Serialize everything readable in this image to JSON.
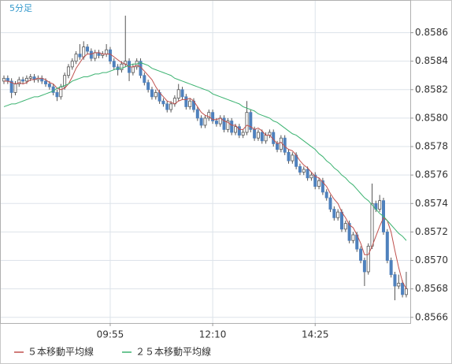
{
  "chart_data": {
    "type": "candlestick",
    "title": "5分足",
    "categories": [
      null,
      null,
      null,
      null,
      null,
      null,
      null,
      null,
      null,
      null,
      null,
      null,
      null,
      null,
      null,
      null,
      null,
      null,
      null,
      null,
      null,
      null,
      null,
      null,
      null,
      null,
      null,
      null,
      "09:55",
      null,
      null,
      null,
      null,
      null,
      null,
      null,
      null,
      null,
      null,
      null,
      null,
      null,
      null,
      null,
      null,
      null,
      null,
      null,
      null,
      null,
      null,
      null,
      null,
      null,
      null,
      "12:10",
      null,
      null,
      null,
      null,
      null,
      null,
      null,
      null,
      null,
      null,
      null,
      null,
      null,
      null,
      null,
      null,
      null,
      null,
      null,
      null,
      null,
      null,
      null,
      null,
      null,
      null,
      "14:25",
      null,
      null,
      null,
      null,
      null,
      null,
      null,
      null,
      null,
      null,
      null,
      null,
      null,
      null,
      null,
      null,
      null,
      null,
      null,
      null,
      null,
      null,
      null,
      null
    ],
    "open": [
      0.85826,
      0.85828,
      0.85826,
      0.85818,
      0.85824,
      0.85827,
      0.85826,
      0.85828,
      0.85829,
      0.85827,
      0.85828,
      0.85826,
      0.85824,
      0.85822,
      0.85818,
      0.85815,
      0.85822,
      0.8583,
      0.85836,
      0.8584,
      0.85845,
      0.85843,
      0.8585,
      0.85847,
      0.85842,
      0.85846,
      0.85844,
      0.85845,
      0.85848,
      0.8584,
      0.85836,
      0.85834,
      0.85838,
      0.8584,
      0.85832,
      0.85836,
      0.8584,
      0.8583,
      0.85825,
      0.8582,
      0.85815,
      0.85818,
      0.85812,
      0.8581,
      0.85806,
      0.8581,
      0.85814,
      0.8582,
      0.85815,
      0.85808,
      0.85812,
      0.85806,
      0.858,
      0.85795,
      0.858,
      0.85804,
      0.85798,
      0.85796,
      0.858,
      0.85792,
      0.85798,
      0.8579,
      0.85794,
      0.85788,
      0.8579,
      0.85804,
      0.85792,
      0.85786,
      0.8579,
      0.85784,
      0.85788,
      0.8579,
      0.85782,
      0.85778,
      0.85786,
      0.85776,
      0.8577,
      0.85774,
      0.85766,
      0.85762,
      0.85764,
      0.85758,
      0.8576,
      0.85752,
      0.85756,
      0.85748,
      0.85744,
      0.85736,
      0.8573,
      0.85734,
      0.85722,
      0.85726,
      0.85714,
      0.85718,
      0.85708,
      0.857,
      0.85692,
      0.8571,
      0.8574,
      0.85736,
      0.85742,
      0.8572,
      0.857,
      0.8569,
      0.85682,
      0.85684,
      0.85676
    ],
    "high": [
      0.8583,
      0.8583,
      0.85828,
      0.85826,
      0.85829,
      0.85829,
      0.8583,
      0.85831,
      0.85831,
      0.8583,
      0.8583,
      0.85828,
      0.85826,
      0.85824,
      0.8582,
      0.85824,
      0.85832,
      0.85838,
      0.85842,
      0.85847,
      0.85852,
      0.85854,
      0.85852,
      0.85849,
      0.85848,
      0.85848,
      0.85847,
      0.85852,
      0.8585,
      0.85842,
      0.85838,
      0.8584,
      0.85872,
      0.85842,
      0.85838,
      0.85842,
      0.85842,
      0.85832,
      0.85827,
      0.85822,
      0.8582,
      0.8582,
      0.85814,
      0.85812,
      0.85812,
      0.85816,
      0.85824,
      0.85822,
      0.85817,
      0.85814,
      0.85814,
      0.85808,
      0.85802,
      0.85802,
      0.85806,
      0.85806,
      0.858,
      0.85802,
      0.85802,
      0.858,
      0.858,
      0.85796,
      0.85796,
      0.85792,
      0.85812,
      0.85806,
      0.85794,
      0.85792,
      0.85792,
      0.8579,
      0.85792,
      0.85792,
      0.85784,
      0.85788,
      0.85788,
      0.85778,
      0.85776,
      0.85776,
      0.85768,
      0.85766,
      0.85766,
      0.85762,
      0.85762,
      0.85758,
      0.85758,
      0.8575,
      0.85746,
      0.85738,
      0.85736,
      0.85736,
      0.85728,
      0.85728,
      0.8572,
      0.8572,
      0.8571,
      0.85702,
      0.85712,
      0.85754,
      0.85742,
      0.85746,
      0.85744,
      0.85722,
      0.85702,
      0.85692,
      0.8569,
      0.85686,
      0.85692
    ],
    "low": [
      0.85824,
      0.85824,
      0.85814,
      0.85816,
      0.85822,
      0.85824,
      0.85824,
      0.85826,
      0.85825,
      0.85825,
      0.85824,
      0.85822,
      0.8582,
      0.85816,
      0.85812,
      0.85813,
      0.8582,
      0.85828,
      0.85834,
      0.85838,
      0.85841,
      0.85841,
      0.85845,
      0.8584,
      0.8584,
      0.85842,
      0.85842,
      0.85843,
      0.85838,
      0.85834,
      0.8583,
      0.85832,
      0.85836,
      0.85826,
      0.8583,
      0.85834,
      0.85828,
      0.85823,
      0.85818,
      0.85813,
      0.85813,
      0.8581,
      0.85808,
      0.85804,
      0.85804,
      0.85808,
      0.85812,
      0.85813,
      0.85806,
      0.85806,
      0.85804,
      0.85798,
      0.85793,
      0.85793,
      0.85798,
      0.85796,
      0.85794,
      0.85794,
      0.8579,
      0.8579,
      0.85788,
      0.85788,
      0.85786,
      0.85786,
      0.85788,
      0.8579,
      0.85784,
      0.85784,
      0.85782,
      0.85782,
      0.85786,
      0.8578,
      0.85776,
      0.85776,
      0.85774,
      0.85768,
      0.85768,
      0.85764,
      0.8576,
      0.8576,
      0.85756,
      0.85756,
      0.8575,
      0.8575,
      0.85746,
      0.85742,
      0.85734,
      0.85728,
      0.85728,
      0.8572,
      0.8572,
      0.85712,
      0.85712,
      0.85706,
      0.85698,
      0.85682,
      0.8569,
      0.85708,
      0.85734,
      0.85734,
      0.85718,
      0.85698,
      0.85688,
      0.85672,
      0.8568,
      0.85674,
      0.85674
    ],
    "close": [
      0.85828,
      0.85826,
      0.85818,
      0.85824,
      0.85827,
      0.85826,
      0.85828,
      0.85829,
      0.85827,
      0.85828,
      0.85826,
      0.85824,
      0.85822,
      0.85818,
      0.85815,
      0.85822,
      0.8583,
      0.85836,
      0.8584,
      0.85845,
      0.85843,
      0.8585,
      0.85847,
      0.85842,
      0.85846,
      0.85844,
      0.85845,
      0.85848,
      0.8584,
      0.85836,
      0.85834,
      0.85838,
      0.8584,
      0.85832,
      0.85836,
      0.8584,
      0.8583,
      0.85825,
      0.8582,
      0.85815,
      0.85818,
      0.85812,
      0.8581,
      0.85806,
      0.8581,
      0.85814,
      0.8582,
      0.85815,
      0.85808,
      0.85812,
      0.85806,
      0.858,
      0.85795,
      0.858,
      0.85804,
      0.85798,
      0.85796,
      0.858,
      0.85792,
      0.85798,
      0.8579,
      0.85794,
      0.85788,
      0.8579,
      0.85804,
      0.85792,
      0.85786,
      0.8579,
      0.85784,
      0.85788,
      0.8579,
      0.85782,
      0.85778,
      0.85786,
      0.85776,
      0.8577,
      0.85774,
      0.85766,
      0.85762,
      0.85764,
      0.85758,
      0.8576,
      0.85752,
      0.85756,
      0.85748,
      0.85744,
      0.85736,
      0.8573,
      0.85734,
      0.85722,
      0.85726,
      0.85714,
      0.85718,
      0.85708,
      0.857,
      0.85692,
      0.8571,
      0.8574,
      0.85736,
      0.85742,
      0.8572,
      0.857,
      0.8569,
      0.85682,
      0.85684,
      0.85676,
      0.8568
    ],
    "up_color": "#ffffff",
    "down_color": "#4f81bd",
    "wick_color": "#555555",
    "series": [
      {
        "name": "５本移動平均線",
        "color": "#c0504d",
        "values": [
          0.85826,
          0.85826,
          0.85825,
          0.85824,
          0.85825,
          0.85824,
          0.85825,
          0.85827,
          0.85827,
          0.85828,
          0.85828,
          0.85827,
          0.85825,
          0.85824,
          0.85821,
          0.8582,
          0.85821,
          0.85824,
          0.85829,
          0.85835,
          0.85839,
          0.85843,
          0.85845,
          0.85845,
          0.85846,
          0.85846,
          0.85845,
          0.85845,
          0.85845,
          0.85843,
          0.85841,
          0.85839,
          0.85838,
          0.85836,
          0.85836,
          0.85837,
          0.85836,
          0.85833,
          0.8583,
          0.85827,
          0.85822,
          0.85818,
          0.85815,
          0.85812,
          0.85811,
          0.8581,
          0.85812,
          0.85813,
          0.85813,
          0.85814,
          0.85812,
          0.85808,
          0.85804,
          0.85802,
          0.85801,
          0.85799,
          0.85799,
          0.858,
          0.85798,
          0.85797,
          0.85795,
          0.85795,
          0.85792,
          0.85792,
          0.85795,
          0.85794,
          0.85792,
          0.85793,
          0.85791,
          0.85788,
          0.85788,
          0.85785,
          0.85782,
          0.85783,
          0.8578,
          0.85778,
          0.85777,
          0.85774,
          0.8577,
          0.85767,
          0.85765,
          0.85762,
          0.85759,
          0.85758,
          0.85755,
          0.85752,
          0.85747,
          0.85743,
          0.8574,
          0.85734,
          0.8573,
          0.85725,
          0.85723,
          0.85718,
          0.85712,
          0.85704,
          0.85704,
          0.8571,
          0.85717,
          0.85724,
          0.8573,
          0.85728,
          0.8572,
          0.85707,
          0.85695,
          0.85685,
          0.8568
        ]
      },
      {
        "name": "２５本移動平均線",
        "color": "#3cb371",
        "values": [
          0.85808,
          0.85809,
          0.8581,
          0.8581,
          0.85811,
          0.85812,
          0.85813,
          0.85814,
          0.85815,
          0.85815,
          0.85816,
          0.85817,
          0.85818,
          0.85819,
          0.85821,
          0.85822,
          0.85823,
          0.85824,
          0.85826,
          0.85827,
          0.85828,
          0.85829,
          0.85829,
          0.8583,
          0.85831,
          0.85831,
          0.85832,
          0.85832,
          0.85833,
          0.85834,
          0.85835,
          0.85835,
          0.85836,
          0.85837,
          0.85838,
          0.85838,
          0.85839,
          0.85838,
          0.85837,
          0.85835,
          0.85834,
          0.85833,
          0.85832,
          0.85831,
          0.8583,
          0.85828,
          0.85827,
          0.85826,
          0.85825,
          0.85824,
          0.85823,
          0.85822,
          0.85821,
          0.8582,
          0.85819,
          0.85817,
          0.85816,
          0.85815,
          0.85814,
          0.85813,
          0.85812,
          0.85811,
          0.8581,
          0.85808,
          0.85807,
          0.85806,
          0.85805,
          0.85803,
          0.85802,
          0.85801,
          0.858,
          0.85798,
          0.85797,
          0.85795,
          0.85793,
          0.85791,
          0.85789,
          0.85788,
          0.85786,
          0.85784,
          0.85782,
          0.8578,
          0.85778,
          0.85775,
          0.85773,
          0.8577,
          0.85768,
          0.85765,
          0.85763,
          0.8576,
          0.85758,
          0.85755,
          0.85753,
          0.8575,
          0.85747,
          0.85744,
          0.85742,
          0.85739,
          0.85736,
          0.85733,
          0.85731,
          0.85728,
          0.85725,
          0.85722,
          0.85719,
          0.85717,
          0.85714
        ]
      }
    ],
    "ylim": [
      0.85656,
      0.85883
    ],
    "yticks": [
      0.8566,
      0.8568,
      {
        "value": 0.857,
        "label": "0.8570"
      },
      0.8572,
      0.8574,
      0.8576,
      0.8578,
      {
        "value": 0.858,
        "label": "0.8580"
      },
      0.8582,
      0.8584,
      0.8586
    ],
    "grid": true
  }
}
